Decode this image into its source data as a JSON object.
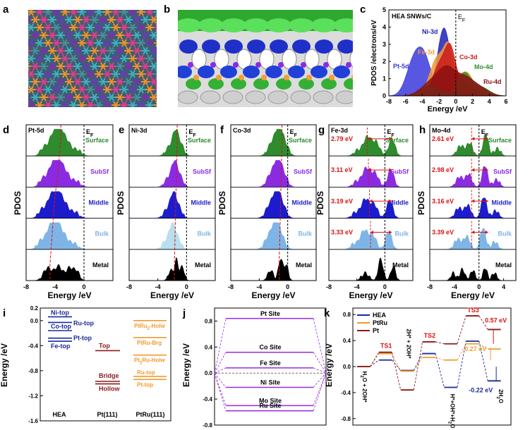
{
  "panel_labels": [
    "a",
    "b",
    "c",
    "d",
    "e",
    "f",
    "g",
    "h",
    "i",
    "j",
    "k"
  ],
  "colors": {
    "pt": "#3a3adc",
    "ni": "#2020b8",
    "fe": "#f39c3a",
    "co": "#cc1a1a",
    "mo": "#2e8f2e",
    "ru": "#8a1010",
    "surface": "#2e8b2e",
    "subsf": "#8a2be2",
    "middle": "#1c1ccc",
    "bulk": "#7fb5e6",
    "bulk_ni": "#b8dff0",
    "metal": "#000000",
    "ann_red": "#dd1111",
    "ef_line": "#000000",
    "hea": "#1a2a9a",
    "ptru": "#f29a2e",
    "pt111": "#8a1a1a",
    "site": "#9a2be2"
  },
  "chart_data": [
    {
      "id": "c",
      "type": "area",
      "title": "HEA SNWs/C",
      "xlabel": "Energy /eV",
      "ylabel": "PDOS /electrons/eV",
      "xlim": [
        -8,
        6
      ],
      "ylim": [
        0,
        5
      ],
      "xticks": [
        -8,
        -6,
        -4,
        -2,
        0,
        2,
        4,
        6
      ],
      "yticks": [
        0,
        1,
        2,
        3,
        4,
        5
      ],
      "ef_label": "EF",
      "series": [
        {
          "name": "Pt-5d",
          "peak": 2.2,
          "center": -4.0
        },
        {
          "name": "Ni-3d",
          "peak": 3.95,
          "center": -1.4
        },
        {
          "name": "Fe-3d",
          "peak": 2.6,
          "center": -1.7
        },
        {
          "name": "Co-3d",
          "peak": 2.3,
          "center": -1.0
        },
        {
          "name": "Mo-4d",
          "peak": 1.3,
          "center": 1.0
        },
        {
          "name": "Ru-4d",
          "peak": 1.5,
          "center": -1.0
        }
      ]
    },
    {
      "id": "d",
      "type": "area",
      "orbital": "Pt-5d",
      "ylabel": "PDOS",
      "xlabel": "Energy /eV",
      "xlim": [
        -8,
        4
      ],
      "xticks": [
        -8,
        -4,
        0
      ],
      "layers": [
        "Surface",
        "SubSf",
        "Middle",
        "Bulk",
        "Metal"
      ],
      "dband_centers": [
        -3.2,
        -3.6,
        -4.1,
        -4.4,
        -4.7
      ]
    },
    {
      "id": "e",
      "type": "area",
      "orbital": "Ni-3d",
      "ylabel": "PDOS",
      "xlabel": "Energy /eV",
      "xlim": [
        -8,
        4
      ],
      "xticks": [
        -8,
        -4,
        0
      ],
      "layers": [
        "Surface",
        "SubSf",
        "Middle",
        "Bulk",
        "Metal"
      ],
      "dband_centers": [
        -1.3,
        -1.4,
        -1.5,
        -1.6,
        -1.7
      ]
    },
    {
      "id": "f",
      "type": "area",
      "orbital": "Co-3d",
      "ylabel": "PDOS",
      "xlabel": "Energy /eV",
      "xlim": [
        -8,
        4
      ],
      "xticks": [
        -8,
        -4,
        0
      ],
      "layers": [
        "Surface",
        "SubSf",
        "Middle",
        "Bulk",
        "Metal"
      ],
      "dband_centers": [
        -0.8,
        -0.9,
        -1.0,
        -1.1,
        -1.2
      ]
    },
    {
      "id": "g",
      "type": "area",
      "orbital": "Fe-3d",
      "ylabel": "PDOS",
      "xlabel": "Energy /eV",
      "xlim": [
        -8,
        4
      ],
      "xticks": [
        -8,
        -4,
        0
      ],
      "layers": [
        "Surface",
        "SubSf",
        "Middle",
        "Bulk",
        "Metal"
      ],
      "splits": [
        "2.79 eV",
        "3.11 eV",
        "3.19 eV",
        "3.33 eV"
      ]
    },
    {
      "id": "h",
      "type": "area",
      "orbital": "Mo-4d",
      "ylabel": "PDOS",
      "xlabel": "Energy /eV",
      "xlim": [
        -8,
        6
      ],
      "xticks": [
        -8,
        -4,
        0,
        4
      ],
      "layers": [
        "Surface",
        "SubSf",
        "Middle",
        "Bulk",
        "Metal"
      ],
      "splits": [
        "2.61 eV",
        "2.98 eV",
        "3.16 eV",
        "3.39 eV"
      ]
    },
    {
      "id": "i",
      "type": "line",
      "ylabel": "Energy /eV",
      "ylim": [
        -1.6,
        0.2
      ],
      "yticks": [
        "0.2",
        "0.0",
        "-0.4",
        "-0.8",
        "-1.2",
        "-1.6"
      ],
      "groups": [
        "HEA",
        "Pt(111)",
        "PtRu(111)"
      ],
      "hea": [
        {
          "label": "Ni-top",
          "value": 0.06
        },
        {
          "label": "Ru-top",
          "value": -0.03
        },
        {
          "label": "Co-top",
          "value": -0.16
        },
        {
          "label": "Pt-top",
          "value": -0.28
        },
        {
          "label": "Fe-top",
          "value": -0.33
        }
      ],
      "pt": [
        {
          "label": "Top",
          "value": -0.48
        },
        {
          "label": "Bridge",
          "value": -0.97
        },
        {
          "label": "Hollow",
          "value": -1.01
        }
      ],
      "ptru": [
        {
          "label": "PtRu",
          "sub": "2",
          "tail": "-Holw",
          "value": 0.0
        },
        {
          "label": "PtRu-Brg",
          "value": -0.27
        },
        {
          "label": "Pt",
          "sub": "2",
          "tail": "Ru-Holw",
          "value": -0.55
        },
        {
          "label": "Ru-top",
          "value": -0.89
        },
        {
          "label": "Pt-top",
          "value": -0.94
        }
      ]
    },
    {
      "id": "j",
      "type": "line",
      "ylabel": "Energy /eV",
      "ylim": [
        -0.8,
        1.0
      ],
      "yticks": [
        "0.8",
        "0.4",
        "0.0",
        "-0.4",
        "-0.8"
      ],
      "sites": [
        {
          "label": "Pt  Site",
          "value": 0.84
        },
        {
          "label": "Co  Site",
          "value": 0.32
        },
        {
          "label": "Fe  Site",
          "value": 0.08
        },
        {
          "label": "Ni  Site",
          "value": -0.22
        },
        {
          "label": "Mo  Site",
          "value": -0.5
        },
        {
          "label": "Ru  Site",
          "value": -0.58
        }
      ]
    },
    {
      "id": "k",
      "type": "line",
      "ylabel": "Energy /eV",
      "ylim": [
        -0.8,
        0.8
      ],
      "yticks": [
        "0.8",
        "0.4",
        "0.0",
        "-0.4",
        "-0.8"
      ],
      "legend": [
        "HEA",
        "PtRu",
        "Pt"
      ],
      "states": [
        "H2O + 2OH*",
        "TS1",
        "2H* + 2OH*",
        "TS2",
        "H*+OH*+H2O",
        "TS3",
        "2H2O"
      ],
      "series": [
        {
          "name": "HEA",
          "values": [
            0.0,
            0.1,
            -0.06,
            0.2,
            -0.32,
            0.39,
            -0.22
          ]
        },
        {
          "name": "PtRu",
          "values": [
            0.0,
            0.2,
            -0.07,
            0.14,
            0.1,
            0.35,
            0.27
          ]
        },
        {
          "name": "Pt",
          "values": [
            0.0,
            0.22,
            -0.36,
            0.38,
            0.35,
            0.78,
            0.57
          ]
        }
      ],
      "annotations": [
        "TS1",
        "TS2",
        "TS3",
        "0.57 eV",
        "0.27 eV",
        "-0.22 eV"
      ]
    }
  ]
}
